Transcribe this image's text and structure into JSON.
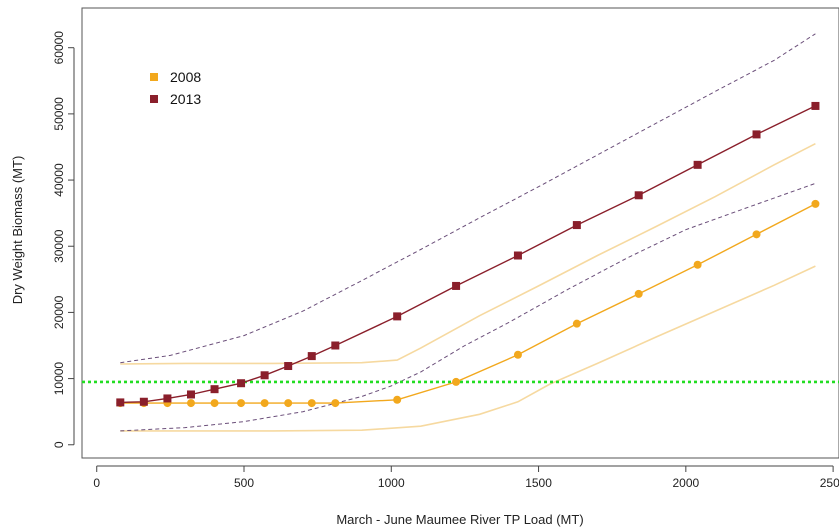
{
  "chart_data": {
    "type": "line",
    "title": "",
    "xlabel": "March - June Maumee River TP Load (MT)",
    "ylabel": "Dry Weight Biomass (MT)",
    "xlim": [
      -50,
      2520
    ],
    "ylim": [
      -2000,
      66000
    ],
    "x_ticks": [
      0,
      500,
      1000,
      1500,
      2000,
      2500
    ],
    "x_tick_labels": [
      "0",
      "500",
      "1000",
      "1500",
      "2000",
      "2500"
    ],
    "y_ticks": [
      0,
      10000,
      20000,
      30000,
      40000,
      50000,
      60000
    ],
    "y_tick_labels": [
      "0",
      "10000",
      "20000",
      "30000",
      "40000",
      "50000",
      "60000"
    ],
    "grid": false,
    "legend": {
      "position": "top-left",
      "entries": [
        "2008",
        "2013"
      ]
    },
    "threshold": {
      "y": 9500,
      "color": "#22dd22",
      "style": "dotted"
    },
    "series": [
      {
        "name": "2008",
        "color": "#f2a81d",
        "marker": "circle",
        "points": [
          {
            "x": 80,
            "y": 6300
          },
          {
            "x": 160,
            "y": 6300
          },
          {
            "x": 240,
            "y": 6300
          },
          {
            "x": 320,
            "y": 6300
          },
          {
            "x": 400,
            "y": 6300
          },
          {
            "x": 490,
            "y": 6300
          },
          {
            "x": 570,
            "y": 6300
          },
          {
            "x": 650,
            "y": 6300
          },
          {
            "x": 730,
            "y": 6300
          },
          {
            "x": 810,
            "y": 6300
          },
          {
            "x": 1020,
            "y": 6800
          },
          {
            "x": 1220,
            "y": 9500
          },
          {
            "x": 1430,
            "y": 13600
          },
          {
            "x": 1630,
            "y": 18300
          },
          {
            "x": 1840,
            "y": 22800
          },
          {
            "x": 2040,
            "y": 27200
          },
          {
            "x": 2240,
            "y": 31800
          },
          {
            "x": 2440,
            "y": 36400
          }
        ],
        "ci_upper": [
          [
            80,
            12200
          ],
          [
            300,
            12300
          ],
          [
            600,
            12300
          ],
          [
            900,
            12400
          ],
          [
            1020,
            12800
          ],
          [
            1100,
            14600
          ],
          [
            1300,
            19500
          ],
          [
            1500,
            24000
          ],
          [
            1700,
            28600
          ],
          [
            1900,
            33000
          ],
          [
            2100,
            37500
          ],
          [
            2300,
            42300
          ],
          [
            2440,
            45500
          ]
        ],
        "ci_lower": [
          [
            80,
            2100
          ],
          [
            300,
            2100
          ],
          [
            600,
            2100
          ],
          [
            900,
            2200
          ],
          [
            1100,
            2800
          ],
          [
            1300,
            4600
          ],
          [
            1430,
            6500
          ],
          [
            1540,
            9200
          ],
          [
            1700,
            12300
          ],
          [
            1900,
            16300
          ],
          [
            2100,
            20200
          ],
          [
            2300,
            24100
          ],
          [
            2440,
            27000
          ]
        ]
      },
      {
        "name": "2013",
        "color": "#8a1f2b",
        "marker": "square",
        "points": [
          {
            "x": 80,
            "y": 6400
          },
          {
            "x": 160,
            "y": 6500
          },
          {
            "x": 240,
            "y": 7000
          },
          {
            "x": 320,
            "y": 7600
          },
          {
            "x": 400,
            "y": 8400
          },
          {
            "x": 490,
            "y": 9300
          },
          {
            "x": 570,
            "y": 10500
          },
          {
            "x": 650,
            "y": 11900
          },
          {
            "x": 730,
            "y": 13400
          },
          {
            "x": 810,
            "y": 15000
          },
          {
            "x": 1020,
            "y": 19400
          },
          {
            "x": 1220,
            "y": 24000
          },
          {
            "x": 1430,
            "y": 28600
          },
          {
            "x": 1630,
            "y": 33200
          },
          {
            "x": 1840,
            "y": 37700
          },
          {
            "x": 2040,
            "y": 42300
          },
          {
            "x": 2240,
            "y": 46900
          },
          {
            "x": 2440,
            "y": 51200
          }
        ],
        "ci_upper": [
          [
            80,
            12400
          ],
          [
            250,
            13500
          ],
          [
            500,
            16500
          ],
          [
            700,
            20200
          ],
          [
            900,
            24800
          ],
          [
            1100,
            29500
          ],
          [
            1300,
            34300
          ],
          [
            1500,
            39000
          ],
          [
            1700,
            43800
          ],
          [
            1900,
            48600
          ],
          [
            2100,
            53400
          ],
          [
            2300,
            58100
          ],
          [
            2440,
            62100
          ]
        ],
        "ci_lower": [
          [
            80,
            2100
          ],
          [
            300,
            2600
          ],
          [
            500,
            3500
          ],
          [
            700,
            5000
          ],
          [
            900,
            7300
          ],
          [
            1000,
            8900
          ],
          [
            1100,
            11000
          ],
          [
            1250,
            15000
          ],
          [
            1400,
            18500
          ],
          [
            1600,
            23500
          ],
          [
            1800,
            28200
          ],
          [
            2000,
            32500
          ],
          [
            2200,
            35700
          ],
          [
            2440,
            39500
          ]
        ]
      }
    ]
  }
}
